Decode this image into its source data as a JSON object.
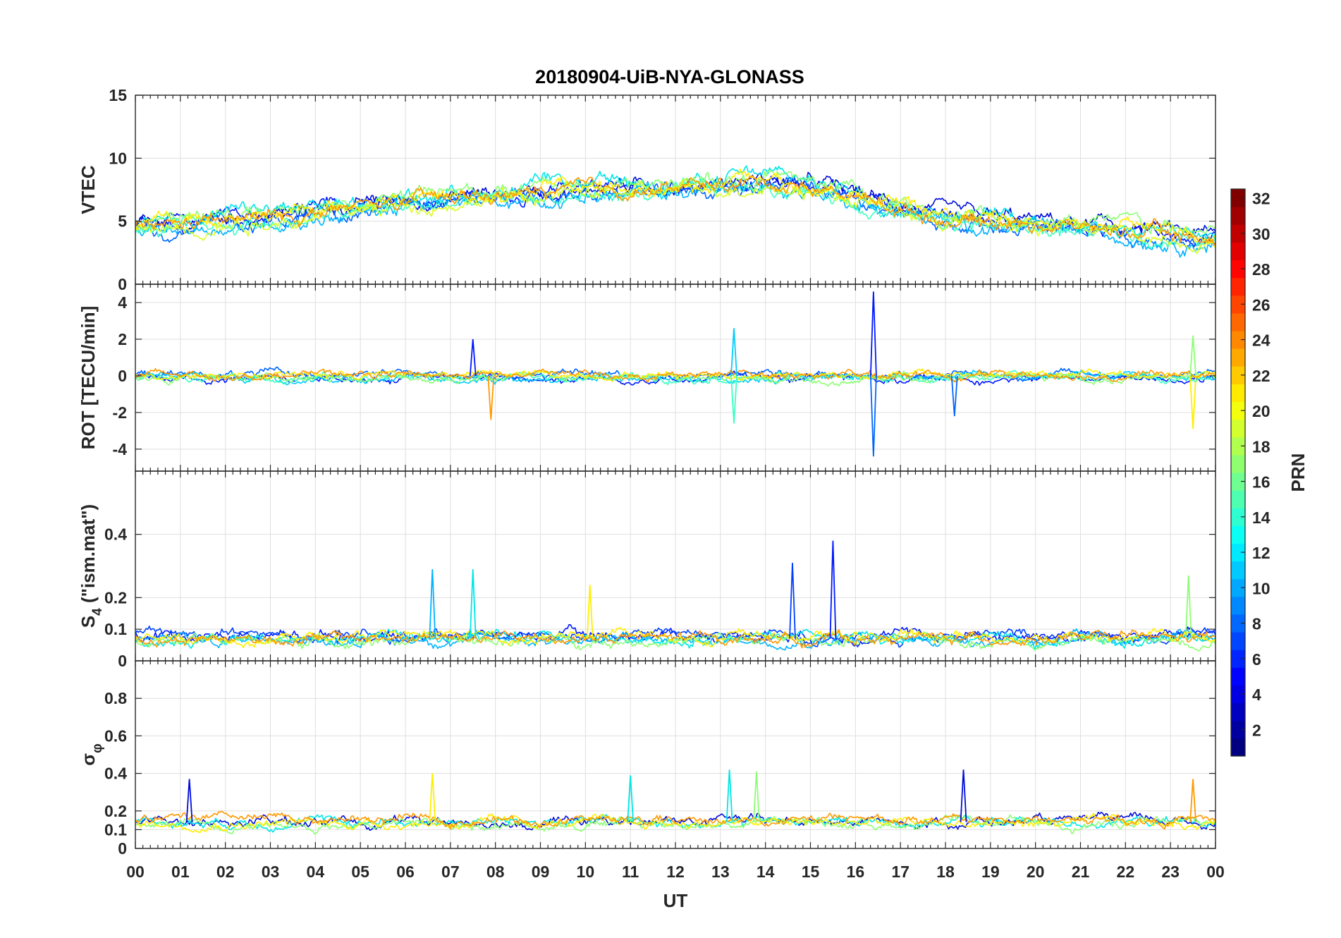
{
  "title": "20180904-UiB-NYA-GLONASS",
  "colorbar": {
    "label": "PRN",
    "range": [
      1,
      32
    ],
    "ticks": [
      2,
      4,
      6,
      8,
      10,
      12,
      14,
      16,
      18,
      20,
      22,
      24,
      26,
      28,
      30,
      32
    ],
    "colormap": "jet"
  },
  "chart_data": {
    "type": "line",
    "shared_x": {
      "label": "UT",
      "range_hours": [
        0,
        24
      ],
      "ticks": [
        "00",
        "01",
        "02",
        "03",
        "04",
        "05",
        "06",
        "07",
        "08",
        "09",
        "10",
        "11",
        "12",
        "13",
        "14",
        "15",
        "16",
        "17",
        "18",
        "19",
        "20",
        "21",
        "22",
        "23",
        "00"
      ]
    },
    "panels": [
      {
        "ylabel": "VTEC",
        "ylim": [
          0,
          15
        ],
        "yticks": [
          "0",
          "5",
          "10",
          "15"
        ],
        "ytick_values": [
          0,
          5,
          10,
          15
        ],
        "baseline_profile": [
          [
            0,
            4.5
          ],
          [
            3,
            5.3
          ],
          [
            6,
            6.5
          ],
          [
            9,
            7.3
          ],
          [
            12,
            7.6
          ],
          [
            14,
            8.2
          ],
          [
            15.5,
            7.5
          ],
          [
            17,
            6.0
          ],
          [
            18,
            5.3
          ],
          [
            20,
            4.8
          ],
          [
            22,
            4.3
          ],
          [
            24,
            3.6
          ]
        ],
        "noise": 0.7,
        "series": [
          {
            "prn": 2,
            "color": "#0019ff"
          },
          {
            "prn": 3,
            "color": "#000dd9"
          },
          {
            "prn": 6,
            "color": "#0066ff"
          },
          {
            "prn": 9,
            "color": "#00b3ff"
          },
          {
            "prn": 12,
            "color": "#00e6e6"
          },
          {
            "prn": 14,
            "color": "#3dffc2"
          },
          {
            "prn": 16,
            "color": "#8cff73"
          },
          {
            "prn": 18,
            "color": "#d9ff26"
          },
          {
            "prn": 20,
            "color": "#ffee00"
          },
          {
            "prn": 23,
            "color": "#ff9900"
          }
        ]
      },
      {
        "ylabel": "ROT [TECU/min]",
        "ylim": [
          -5.2,
          5
        ],
        "yticks": [
          "-4",
          "-2",
          "0",
          "2",
          "4"
        ],
        "ytick_values": [
          -4,
          -2,
          0,
          2,
          4
        ],
        "baseline_profile": [
          [
            0,
            0
          ],
          [
            24,
            0
          ]
        ],
        "noise": 0.25,
        "spikes": [
          [
            16.4,
            4.6
          ],
          [
            16.4,
            -4.4
          ],
          [
            13.3,
            2.6
          ],
          [
            13.3,
            -2.6
          ],
          [
            23.5,
            2.2
          ],
          [
            23.5,
            -2.9
          ],
          [
            7.9,
            -2.4
          ],
          [
            7.5,
            2.0
          ],
          [
            18.2,
            -2.2
          ]
        ],
        "series": [
          {
            "prn": 2,
            "color": "#0019ff"
          },
          {
            "prn": 6,
            "color": "#0066ff"
          },
          {
            "prn": 10,
            "color": "#00ccff"
          },
          {
            "prn": 14,
            "color": "#3dffc2"
          },
          {
            "prn": 16,
            "color": "#8cff73"
          },
          {
            "prn": 20,
            "color": "#ffee00"
          },
          {
            "prn": 23,
            "color": "#ff9900"
          }
        ]
      },
      {
        "ylabel": "S",
        "ylabel_sub": "4",
        "ylabel_rest": "(\"ism.mat\")",
        "ylim": [
          0,
          0.6
        ],
        "yticks": [
          "0",
          "0.1",
          "0.2",
          "0.4"
        ],
        "ytick_values": [
          0,
          0.1,
          0.2,
          0.4
        ],
        "baseline_profile": [
          [
            0,
            0.07
          ],
          [
            24,
            0.07
          ]
        ],
        "noise": 0.02,
        "spikes": [
          [
            15.5,
            0.38
          ],
          [
            14.6,
            0.31
          ],
          [
            6.6,
            0.29
          ],
          [
            7.5,
            0.29
          ],
          [
            23.4,
            0.27
          ],
          [
            10.1,
            0.24
          ]
        ],
        "series": [
          {
            "prn": 2,
            "color": "#0019ff"
          },
          {
            "prn": 5,
            "color": "#0040ff"
          },
          {
            "prn": 9,
            "color": "#00b3ff"
          },
          {
            "prn": 12,
            "color": "#00e6e6"
          },
          {
            "prn": 16,
            "color": "#8cff73"
          },
          {
            "prn": 20,
            "color": "#ffee00"
          },
          {
            "prn": 23,
            "color": "#ff9900"
          }
        ]
      },
      {
        "ylabel": "σ",
        "ylabel_sub": "φ",
        "ylabel_rest": "",
        "ylim": [
          0,
          1
        ],
        "yticks": [
          "0",
          "0.1",
          "0.2",
          "0.4",
          "0.6",
          "0.8"
        ],
        "ytick_values": [
          0,
          0.1,
          0.2,
          0.4,
          0.6,
          0.8
        ],
        "baseline_profile": [
          [
            0,
            0.14
          ],
          [
            24,
            0.14
          ]
        ],
        "noise": 0.03,
        "spikes": [
          [
            18.4,
            0.42
          ],
          [
            13.2,
            0.42
          ],
          [
            13.8,
            0.41
          ],
          [
            6.6,
            0.4
          ],
          [
            23.5,
            0.37
          ],
          [
            1.2,
            0.37
          ],
          [
            11.0,
            0.39
          ]
        ],
        "series": [
          {
            "prn": 3,
            "color": "#000dd9"
          },
          {
            "prn": 12,
            "color": "#00e6e6"
          },
          {
            "prn": 16,
            "color": "#8cff73"
          },
          {
            "prn": 20,
            "color": "#ffee00"
          },
          {
            "prn": 23,
            "color": "#ff9900"
          }
        ]
      }
    ]
  }
}
